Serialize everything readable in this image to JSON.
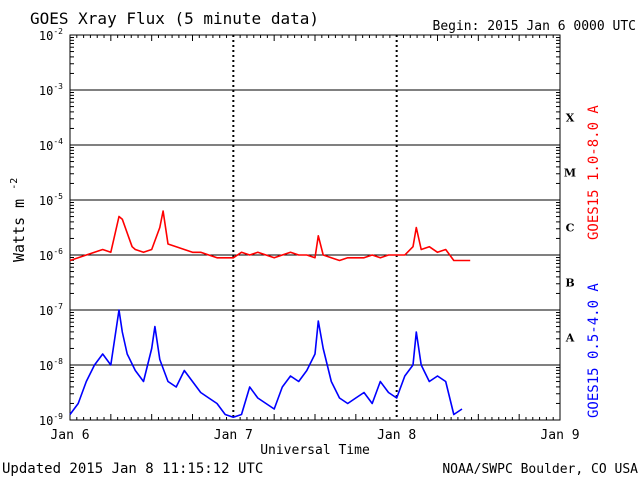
{
  "chart_data": {
    "type": "line",
    "title": "GOES Xray Flux (5 minute data)",
    "begin_label": "Begin:  2015 Jan 6 0000 UTC",
    "xlabel": "Universal Time",
    "ylabel_base": "Watts m",
    "ylabel_exp": "-2",
    "y_scale": "log",
    "ylim_exp": [
      -9,
      -2
    ],
    "y_ticks": [
      {
        "base": "10",
        "exp": "-2"
      },
      {
        "base": "10",
        "exp": "-3"
      },
      {
        "base": "10",
        "exp": "-4"
      },
      {
        "base": "10",
        "exp": "-5"
      },
      {
        "base": "10",
        "exp": "-6"
      },
      {
        "base": "10",
        "exp": "-7"
      },
      {
        "base": "10",
        "exp": "-8"
      },
      {
        "base": "10",
        "exp": "-9"
      }
    ],
    "x_ticks": [
      "Jan 6",
      "Jan 7",
      "Jan 8",
      "Jan 9"
    ],
    "xlim_days": [
      0,
      3
    ],
    "flare_classes": [
      {
        "label": "X",
        "exp": -3.5
      },
      {
        "label": "M",
        "exp": -4.5
      },
      {
        "label": "C",
        "exp": -5.5
      },
      {
        "label": "B",
        "exp": -6.5
      },
      {
        "label": "A",
        "exp": -7.5
      }
    ],
    "grid": true,
    "series": [
      {
        "name": "GOES15 1.0-8.0 A",
        "color": "#ff0000",
        "x_days": [
          0.0,
          0.05,
          0.1,
          0.15,
          0.2,
          0.25,
          0.3,
          0.32,
          0.35,
          0.38,
          0.4,
          0.45,
          0.5,
          0.55,
          0.57,
          0.6,
          0.65,
          0.7,
          0.75,
          0.8,
          0.85,
          0.9,
          0.95,
          1.0,
          1.05,
          1.1,
          1.15,
          1.2,
          1.25,
          1.3,
          1.35,
          1.4,
          1.45,
          1.5,
          1.52,
          1.55,
          1.6,
          1.65,
          1.7,
          1.75,
          1.8,
          1.85,
          1.9,
          1.95,
          2.0,
          2.05,
          2.1,
          2.12,
          2.15,
          2.2,
          2.25,
          2.3,
          2.35,
          2.4,
          2.45
        ],
        "y_exp": [
          -6.1,
          -6.05,
          -6.0,
          -5.95,
          -5.9,
          -5.95,
          -5.3,
          -5.35,
          -5.6,
          -5.85,
          -5.9,
          -5.95,
          -5.9,
          -5.5,
          -5.2,
          -5.8,
          -5.85,
          -5.9,
          -5.95,
          -5.95,
          -6.0,
          -6.05,
          -6.05,
          -6.05,
          -5.95,
          -6.0,
          -5.95,
          -6.0,
          -6.05,
          -6.0,
          -5.95,
          -6.0,
          -6.0,
          -6.05,
          -5.65,
          -6.0,
          -6.05,
          -6.1,
          -6.05,
          -6.05,
          -6.05,
          -6.0,
          -6.05,
          -6.0,
          -6.0,
          -6.0,
          -5.85,
          -5.5,
          -5.9,
          -5.85,
          -5.95,
          -5.9,
          -6.1,
          -6.1,
          -6.1
        ]
      },
      {
        "name": "GOES15 0.5-4.0 A",
        "color": "#0000ff",
        "x_days": [
          0.0,
          0.05,
          0.1,
          0.15,
          0.2,
          0.25,
          0.3,
          0.32,
          0.35,
          0.4,
          0.45,
          0.5,
          0.52,
          0.55,
          0.6,
          0.65,
          0.7,
          0.75,
          0.8,
          0.85,
          0.9,
          0.95,
          1.0,
          1.05,
          1.1,
          1.15,
          1.2,
          1.25,
          1.3,
          1.35,
          1.4,
          1.45,
          1.5,
          1.52,
          1.55,
          1.6,
          1.65,
          1.7,
          1.75,
          1.8,
          1.85,
          1.9,
          1.95,
          2.0,
          2.05,
          2.1,
          2.12,
          2.15,
          2.2,
          2.25,
          2.3,
          2.35,
          2.4
        ],
        "y_exp": [
          -8.9,
          -8.7,
          -8.3,
          -8.0,
          -7.8,
          -8.0,
          -7.0,
          -7.4,
          -7.8,
          -8.1,
          -8.3,
          -7.7,
          -7.3,
          -7.9,
          -8.3,
          -8.4,
          -8.1,
          -8.3,
          -8.5,
          -8.6,
          -8.7,
          -8.9,
          -8.95,
          -8.9,
          -8.4,
          -8.6,
          -8.7,
          -8.8,
          -8.4,
          -8.2,
          -8.3,
          -8.1,
          -7.8,
          -7.2,
          -7.7,
          -8.3,
          -8.6,
          -8.7,
          -8.6,
          -8.5,
          -8.7,
          -8.3,
          -8.5,
          -8.6,
          -8.2,
          -8.0,
          -7.4,
          -8.0,
          -8.3,
          -8.2,
          -8.3,
          -8.9,
          -8.8
        ]
      }
    ]
  },
  "footer": {
    "updated": "Updated 2015 Jan  8 11:15:12 UTC",
    "credit": "NOAA/SWPC Boulder, CO USA"
  }
}
